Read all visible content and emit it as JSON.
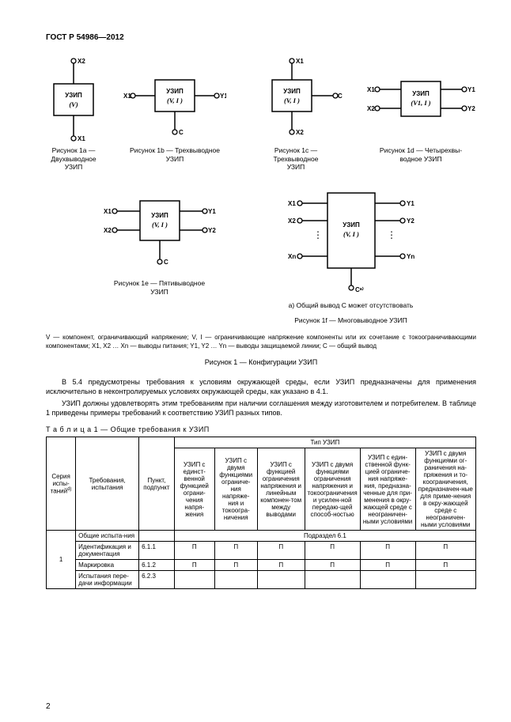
{
  "header": "ГОСТ Р 54986—2012",
  "figs": {
    "a": {
      "caption": "Рисунок 1a —\nДвухвыводное\nУЗИП",
      "box": "УЗИП",
      "sub": "(V)"
    },
    "b": {
      "caption": "Рисунок 1b — Трехвыводное\nУЗИП",
      "box": "УЗИП",
      "sub": "(V, I )"
    },
    "c": {
      "caption": "Рисунок 1c —\nТрехвыводное\nУЗИП",
      "box": "УЗИП",
      "sub": "(V, I )"
    },
    "d": {
      "caption": "Рисунок 1d — Четырехвы-\nводное УЗИП",
      "box": "УЗИП",
      "sub": "(V1, I )"
    },
    "e": {
      "caption": "Рисунок 1e — Пятивыводное\nУЗИП",
      "box": "УЗИП",
      "sub": "(V, I )"
    },
    "f": {
      "caption": "Рисунок 1f — Многовыводное УЗИП",
      "note": "a) Общий вывод C может отсутствовать",
      "box": "УЗИП",
      "sub": "(V, I )"
    }
  },
  "term_labels": {
    "x1": "X1",
    "x2": "X2",
    "xn": "Xn",
    "y1": "Y1",
    "y2": "Y2",
    "yn": "Yn",
    "c": "C",
    "ca": "Cᵃ⁾"
  },
  "legend": "V — компонент, ограничивающий напряжение; V, I — ограничивающие напряжение компоненты или их сочетание с токоограничивающими компонентами; X1, X2 … Xn — выводы питания; Y1, Y2 … Yn — выводы защищаемой линии; C — общий вывод",
  "fig1_title": "Рисунок 1 — Конфигурации УЗИП",
  "para1": "В 5.4 предусмотрены требования к условиям окружающей среды, если УЗИП предназначены для применения исключительно в неконтролируемых условиях окружающей среды, как указано в 4.1.",
  "para2": "УЗИП должны удовлетворять этим требованиям при наличии соглашения между изготовителем и потребителем. В таблице 1 приведены примеры требований к соответствию УЗИП разных типов.",
  "table_title": "Т а б л и ц а  1 — Общие требования к УЗИП",
  "tbl": {
    "h_series": "Серия\nиспы-\nтаний",
    "h_series_sup": "d)",
    "h_req": "Требования,\nиспытания",
    "h_clause": "Пункт,\nподпункт",
    "h_type": "Тип УЗИП",
    "types": [
      "УЗИП с единст-венной функцией ограни-чения напря-жения",
      "УЗИП с двумя функциями ограниче-ния напряже-ния и токоогра-ничения",
      "УЗИП с функцией ограничения напряжения и линейным компонен-том между выводами",
      "УЗИП с двумя функциями ограничения напряжения и токоограничения и усилен-ной передаю-щей способ-ностью",
      "УЗИП с един-ственной функ-цией ограниче-ния напряже-ния, предназна-ченные для при-менения в окру-жающей среде с неограничен-ными условиями",
      "УЗИП с двумя функциями ог-раничения на-пряжения и то-коограничения, предназначен-ные для приме-нения в окру-жающей среде с неограничен-ными условиями"
    ],
    "rows": [
      {
        "n": "",
        "req": "Общие испыта-ния",
        "clause": "",
        "cells": [
          "Подраздел 6.1",
          "",
          "",
          "",
          "",
          ""
        ],
        "span": 6
      },
      {
        "n": "1",
        "req": "Идентификация и документация",
        "clause": "6.1.1",
        "cells": [
          "П",
          "П",
          "П",
          "П",
          "П",
          "П"
        ]
      },
      {
        "n": "",
        "req": "Маркировка",
        "clause": "6.1.2",
        "cells": [
          "П",
          "П",
          "П",
          "П",
          "П",
          "П"
        ]
      },
      {
        "n": "",
        "req": "Испытания пере-дачи информации",
        "clause": "6.2.3",
        "cells": [
          "",
          "",
          "",
          "",
          "",
          ""
        ]
      }
    ]
  },
  "page_number": "2",
  "colors": {
    "fg": "#000000",
    "bg": "#ffffff"
  }
}
